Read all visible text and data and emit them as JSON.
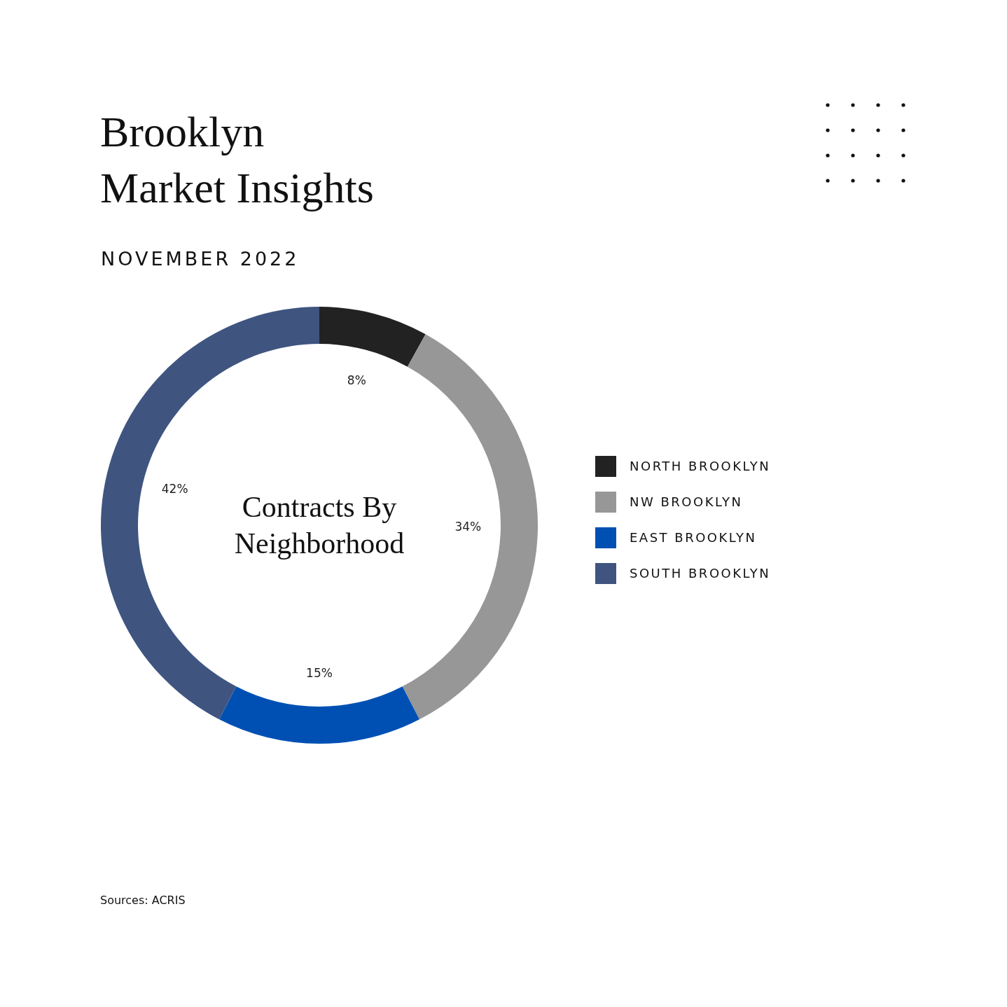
{
  "chart_data": {
    "type": "donut",
    "title": "Brooklyn\nMarket Insights",
    "subtitle": "NOVEMBER 2022",
    "categories": [
      "NORTH BROOKLYN",
      "NW BROOKLYN",
      "EAST BROOKLYN",
      "SOUTH BROOKLYN"
    ],
    "values": [
      8,
      34,
      15,
      42
    ],
    "value_labels": [
      "8%",
      "34%",
      "15%",
      "42%"
    ],
    "colors": [
      "#222222",
      "#979797",
      "#0050b3",
      "#3f5580"
    ],
    "legend": "right",
    "annotations": [
      "Contracts By\nNeighborhood",
      "Sources: ACRIS"
    ]
  }
}
